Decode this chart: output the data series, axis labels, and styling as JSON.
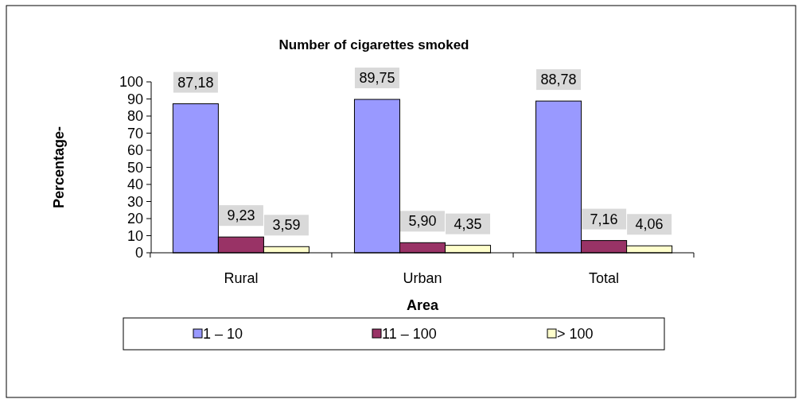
{
  "chart_data": {
    "type": "bar",
    "title": "Number of cigarettes smoked",
    "xlabel": "Area",
    "ylabel": "Percentage-",
    "categories": [
      "Rural",
      "Urban",
      "Total"
    ],
    "series": [
      {
        "name": "1 – 10",
        "color": "#9999ff",
        "values": [
          87.18,
          89.75,
          88.78
        ],
        "value_labels": [
          "87,18",
          "89,75",
          "88,78"
        ]
      },
      {
        "name": "11 – 100",
        "color": "#993366",
        "values": [
          9.23,
          5.9,
          7.16
        ],
        "value_labels": [
          "9,23",
          "5,90",
          "7,16"
        ]
      },
      {
        "name": "> 100",
        "color": "#ffffcc",
        "values": [
          3.59,
          4.35,
          4.06
        ],
        "value_labels": [
          "3,59",
          "4,35",
          "4,06"
        ]
      }
    ],
    "ylim": [
      0,
      100
    ],
    "yticks": [
      0,
      10,
      20,
      30,
      40,
      50,
      60,
      70,
      80,
      90,
      100
    ],
    "legend": "bottom"
  }
}
